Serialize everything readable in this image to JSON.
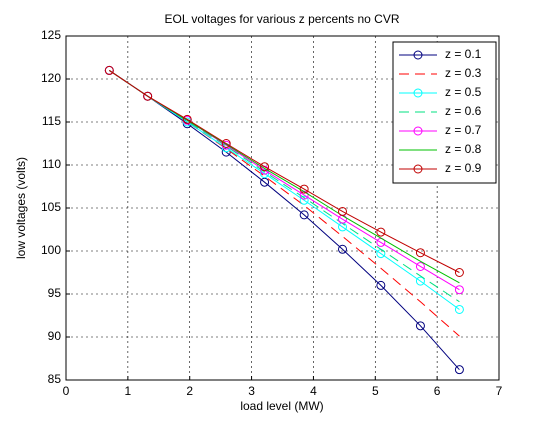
{
  "chart_data": {
    "type": "line",
    "title": "EOL voltages for various z percents no CVR",
    "x_label": "load level (MW)",
    "y_label": "low voltages (volts)",
    "x": [
      0.7,
      1.32,
      1.96,
      2.59,
      3.21,
      3.85,
      4.47,
      5.09,
      5.73,
      6.36
    ],
    "series": [
      {
        "name": "z = 0.1",
        "color": "#00007f",
        "line_style": "solid",
        "marker": "o",
        "values": [
          121,
          118,
          114.8,
          111.5,
          108,
          104.2,
          100.2,
          96,
          91.3,
          86.2
        ]
      },
      {
        "name": "z = 0.3",
        "color": "#ff0000",
        "line_style": "dashed",
        "marker": "none",
        "values": [
          121,
          118,
          115,
          111.9,
          108.7,
          105.3,
          101.7,
          98,
          94.1,
          90.1
        ]
      },
      {
        "name": "z = 0.5",
        "color": "#00ffff",
        "line_style": "solid",
        "marker": "o",
        "values": [
          121,
          118,
          115,
          112,
          109,
          105.9,
          102.8,
          99.7,
          96.5,
          93.2
        ]
      },
      {
        "name": "z = 0.6",
        "color": "#00e080",
        "line_style": "dashed",
        "marker": "none",
        "values": [
          121,
          118,
          115.1,
          112.2,
          109.2,
          106.2,
          103.2,
          100.2,
          97.1,
          94.1
        ]
      },
      {
        "name": "z = 0.7",
        "color": "#ff00ff",
        "line_style": "solid",
        "marker": "o",
        "values": [
          121,
          118,
          115.2,
          112.3,
          109.4,
          106.5,
          103.7,
          101,
          98.2,
          95.5
        ]
      },
      {
        "name": "z = 0.8",
        "color": "#00c000",
        "line_style": "solid",
        "marker": "none",
        "values": [
          121,
          118,
          115.2,
          112.4,
          109.6,
          106.9,
          104.1,
          101.5,
          98.8,
          96.3
        ]
      },
      {
        "name": "z = 0.9",
        "color": "#c00000",
        "line_style": "solid",
        "marker": "o",
        "values": [
          121,
          118,
          115.3,
          112.5,
          109.8,
          107.2,
          104.6,
          102.2,
          99.8,
          97.5
        ]
      }
    ],
    "xlim": [
      0,
      7
    ],
    "xticks": [
      0,
      1,
      2,
      3,
      4,
      5,
      6,
      7
    ],
    "ylim": [
      85,
      125
    ],
    "yticks": [
      85,
      90,
      95,
      100,
      105,
      110,
      115,
      120,
      125
    ],
    "grid": true,
    "legend_position": "upper right"
  }
}
